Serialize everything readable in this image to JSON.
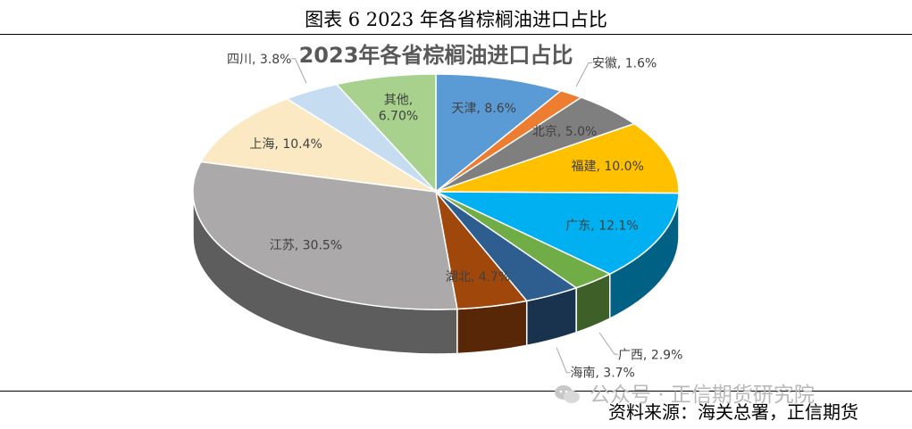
{
  "figure_caption": "图表 6  2023 年各省棕榈油进口占比",
  "source": "资料来源：海关总署，正信期货",
  "watermark": "公众号 · 正信期货研究院",
  "chart_data": {
    "type": "pie",
    "title": "2023年各省棕榈油进口占比",
    "style": "3d",
    "slices": [
      {
        "name": "天津",
        "value": 8.6,
        "label": "天津, 8.6%",
        "color": "#5b9bd5"
      },
      {
        "name": "安徽",
        "value": 1.6,
        "label": "安徽, 1.6%",
        "color": "#ed7d31"
      },
      {
        "name": "北京",
        "value": 5.0,
        "label": "北京, 5.0%",
        "color": "#7f7f7f"
      },
      {
        "name": "福建",
        "value": 10.0,
        "label": "福建, 10.0%",
        "color": "#ffc000"
      },
      {
        "name": "广东",
        "value": 12.1,
        "label": "广东, 12.1%",
        "color": "#00b0f0"
      },
      {
        "name": "广西",
        "value": 2.9,
        "label": "广西, 2.9%",
        "color": "#70ad47"
      },
      {
        "name": "海南",
        "value": 3.7,
        "label": "海南, 3.7%",
        "color": "#2e5d8f"
      },
      {
        "name": "湖北",
        "value": 4.7,
        "label": "湖北, 4.7%",
        "color": "#a0470c"
      },
      {
        "name": "江苏",
        "value": 30.5,
        "label": "江苏, 30.5%",
        "color": "#aba9a9"
      },
      {
        "name": "上海",
        "value": 10.4,
        "label": "上海, 10.4%",
        "color": "#fbe9c4"
      },
      {
        "name": "四川",
        "value": 3.8,
        "label": "四川, 3.8%",
        "color": "#c6dcf1"
      },
      {
        "name": "其他",
        "value": 6.7,
        "label": "其他,\n6.70%",
        "color": "#a9d18e"
      }
    ]
  }
}
